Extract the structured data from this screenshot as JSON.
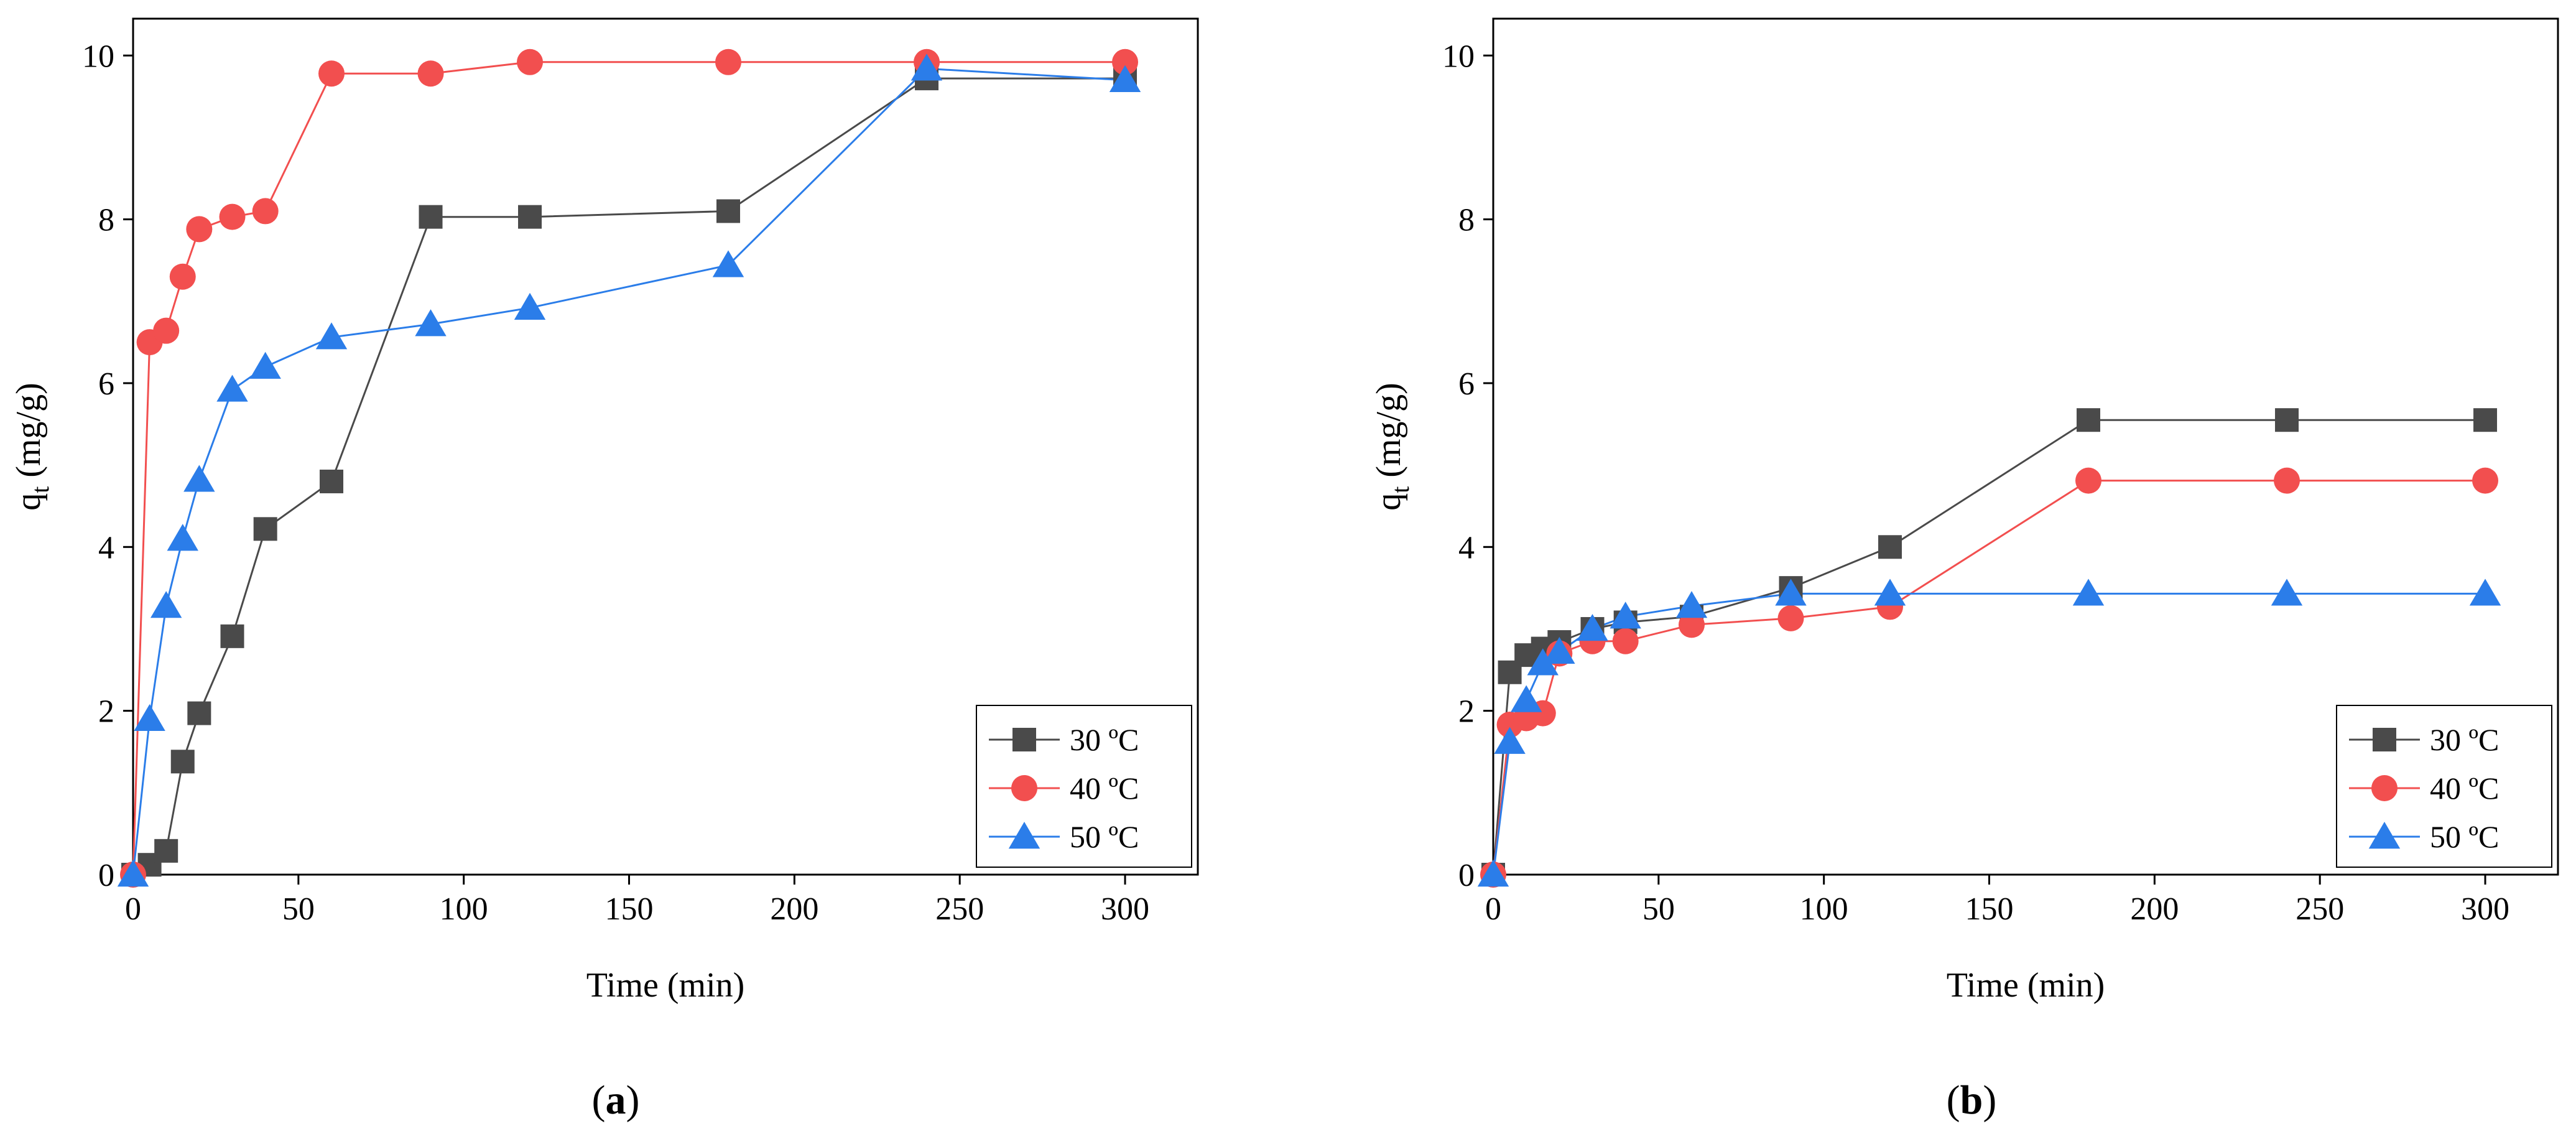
{
  "colors": {
    "series_30": "#4a4a4a",
    "series_40": "#f24f4f",
    "series_50": "#2b7de9",
    "axis": "#000000"
  },
  "chart_data": [
    {
      "panel": "a",
      "panel_label": "a",
      "type": "line",
      "xlabel": "Time (min)",
      "ylabel_main": "q",
      "ylabel_sub": "t",
      "ylabel_unit": " (mg/g)",
      "xlim": [
        0,
        322
      ],
      "ylim": [
        0,
        10.45
      ],
      "xticks": [
        0,
        50,
        100,
        150,
        200,
        250,
        300
      ],
      "yticks": [
        0,
        2,
        4,
        6,
        8,
        10
      ],
      "legend_position": "bottom-right",
      "series": [
        {
          "name": "30 ºC",
          "marker": "square",
          "color_key": "series_30",
          "x": [
            0,
            5,
            10,
            15,
            20,
            30,
            40,
            60,
            90,
            120,
            180,
            240,
            300
          ],
          "y": [
            0,
            0.12,
            0.29,
            1.38,
            1.97,
            2.91,
            4.22,
            4.8,
            8.03,
            8.03,
            8.1,
            9.72,
            9.72
          ]
        },
        {
          "name": "40 ºC",
          "marker": "circle",
          "color_key": "series_40",
          "x": [
            0,
            5,
            10,
            15,
            20,
            30,
            40,
            60,
            90,
            120,
            180,
            240,
            300
          ],
          "y": [
            0,
            6.5,
            6.64,
            7.3,
            7.88,
            8.03,
            8.1,
            9.78,
            9.78,
            9.92,
            9.92,
            9.92,
            9.92
          ]
        },
        {
          "name": "50 ºC",
          "marker": "triangle",
          "color_key": "series_50",
          "x": [
            0,
            5,
            10,
            15,
            20,
            30,
            40,
            60,
            90,
            120,
            180,
            240,
            300
          ],
          "y": [
            0,
            1.9,
            3.28,
            4.1,
            4.82,
            5.92,
            6.2,
            6.56,
            6.72,
            6.92,
            7.44,
            9.84,
            9.7
          ]
        }
      ]
    },
    {
      "panel": "b",
      "panel_label": "b",
      "type": "line",
      "xlabel": "Time (min)",
      "ylabel_main": "q",
      "ylabel_sub": "t",
      "ylabel_unit": " (mg/g)",
      "xlim": [
        0,
        322
      ],
      "ylim": [
        0,
        10.45
      ],
      "xticks": [
        0,
        50,
        100,
        150,
        200,
        250,
        300
      ],
      "yticks": [
        0,
        2,
        4,
        6,
        8,
        10
      ],
      "legend_position": "bottom-right",
      "series": [
        {
          "name": "30 ºC",
          "marker": "square",
          "color_key": "series_30",
          "x": [
            0,
            5,
            10,
            15,
            20,
            30,
            40,
            60,
            90,
            120,
            180,
            240,
            300
          ],
          "y": [
            0,
            2.47,
            2.68,
            2.76,
            2.84,
            3.0,
            3.08,
            3.15,
            3.5,
            4.0,
            5.55,
            5.55,
            5.55
          ]
        },
        {
          "name": "40 ºC",
          "marker": "circle",
          "color_key": "series_40",
          "x": [
            0,
            5,
            10,
            15,
            20,
            30,
            40,
            60,
            90,
            120,
            180,
            240,
            300
          ],
          "y": [
            0,
            1.83,
            1.91,
            1.97,
            2.7,
            2.85,
            2.85,
            3.05,
            3.13,
            3.27,
            4.81,
            4.81,
            4.81
          ]
        },
        {
          "name": "50 ºC",
          "marker": "triangle",
          "color_key": "series_50",
          "x": [
            0,
            5,
            10,
            15,
            20,
            30,
            40,
            60,
            90,
            120,
            180,
            240,
            300
          ],
          "y": [
            0,
            1.62,
            2.13,
            2.58,
            2.72,
            3.0,
            3.15,
            3.28,
            3.43,
            3.43,
            3.43,
            3.43,
            3.43
          ]
        }
      ]
    }
  ]
}
